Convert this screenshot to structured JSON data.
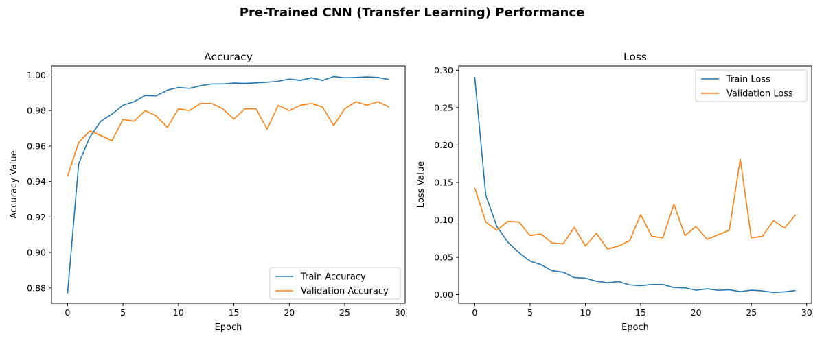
{
  "figure": {
    "title": "Pre-Trained CNN (Transfer Learning) Performance"
  },
  "chart_data": [
    {
      "type": "line",
      "title": "Accuracy",
      "xlabel": "Epoch",
      "ylabel": "Accuracy Value",
      "xlim": [
        -1.45,
        30.45
      ],
      "ylim": [
        0.8714,
        1.0052
      ],
      "xticks": [
        0,
        5,
        10,
        15,
        20,
        25,
        30
      ],
      "xtick_labels": [
        "0",
        "5",
        "10",
        "15",
        "20",
        "25",
        "30"
      ],
      "yticks": [
        0.88,
        0.9,
        0.92,
        0.94,
        0.96,
        0.98,
        1.0
      ],
      "ytick_labels": [
        "0.88",
        "0.90",
        "0.92",
        "0.94",
        "0.96",
        "0.98",
        "1.00"
      ],
      "grid": false,
      "legend_position": "bottom-right",
      "x": [
        0,
        1,
        2,
        3,
        4,
        5,
        6,
        7,
        8,
        9,
        10,
        11,
        12,
        13,
        14,
        15,
        16,
        17,
        18,
        19,
        20,
        21,
        22,
        23,
        24,
        25,
        26,
        27,
        28,
        29
      ],
      "series": [
        {
          "name": "Train Accuracy",
          "color": "#1f77b4",
          "values": [
            0.877,
            0.95,
            0.965,
            0.974,
            0.978,
            0.983,
            0.985,
            0.9885,
            0.9883,
            0.9915,
            0.993,
            0.9925,
            0.994,
            0.995,
            0.995,
            0.9955,
            0.9953,
            0.9956,
            0.996,
            0.9965,
            0.9978,
            0.997,
            0.9985,
            0.997,
            0.9992,
            0.9985,
            0.9987,
            0.999,
            0.9987,
            0.9975
          ]
        },
        {
          "name": "Validation Accuracy",
          "color": "#ff7f0e",
          "values": [
            0.943,
            0.962,
            0.9685,
            0.966,
            0.963,
            0.975,
            0.974,
            0.98,
            0.977,
            0.9705,
            0.981,
            0.98,
            0.984,
            0.984,
            0.981,
            0.9752,
            0.981,
            0.981,
            0.9695,
            0.983,
            0.98,
            0.983,
            0.984,
            0.982,
            0.9715,
            0.981,
            0.985,
            0.983,
            0.985,
            0.982
          ]
        }
      ]
    },
    {
      "type": "line",
      "title": "Loss",
      "xlabel": "Epoch",
      "ylabel": "Loss Value",
      "xlim": [
        -1.45,
        30.45
      ],
      "ylim": [
        -0.0114,
        0.3058
      ],
      "xticks": [
        0,
        5,
        10,
        15,
        20,
        25,
        30
      ],
      "xtick_labels": [
        "0",
        "5",
        "10",
        "15",
        "20",
        "25",
        "30"
      ],
      "yticks": [
        0.0,
        0.05,
        0.1,
        0.15,
        0.2,
        0.25,
        0.3
      ],
      "ytick_labels": [
        "0.00",
        "0.05",
        "0.10",
        "0.15",
        "0.20",
        "0.25",
        "0.30"
      ],
      "grid": false,
      "legend_position": "top-right",
      "x": [
        0,
        1,
        2,
        3,
        4,
        5,
        6,
        7,
        8,
        9,
        10,
        11,
        12,
        13,
        14,
        15,
        16,
        17,
        18,
        19,
        20,
        21,
        22,
        23,
        24,
        25,
        26,
        27,
        28,
        29
      ],
      "series": [
        {
          "name": "Train Loss",
          "color": "#1f77b4",
          "values": [
            0.291,
            0.133,
            0.091,
            0.07,
            0.056,
            0.045,
            0.04,
            0.032,
            0.03,
            0.023,
            0.022,
            0.018,
            0.016,
            0.0175,
            0.013,
            0.012,
            0.0135,
            0.0135,
            0.0095,
            0.009,
            0.006,
            0.0078,
            0.0058,
            0.0065,
            0.004,
            0.006,
            0.005,
            0.003,
            0.0038,
            0.0055
          ]
        },
        {
          "name": "Validation Loss",
          "color": "#ff7f0e",
          "values": [
            0.143,
            0.097,
            0.086,
            0.098,
            0.097,
            0.079,
            0.081,
            0.069,
            0.068,
            0.09,
            0.065,
            0.082,
            0.061,
            0.065,
            0.072,
            0.107,
            0.078,
            0.076,
            0.121,
            0.079,
            0.091,
            0.074,
            0.08,
            0.086,
            0.181,
            0.076,
            0.078,
            0.099,
            0.089,
            0.107
          ]
        }
      ]
    }
  ]
}
